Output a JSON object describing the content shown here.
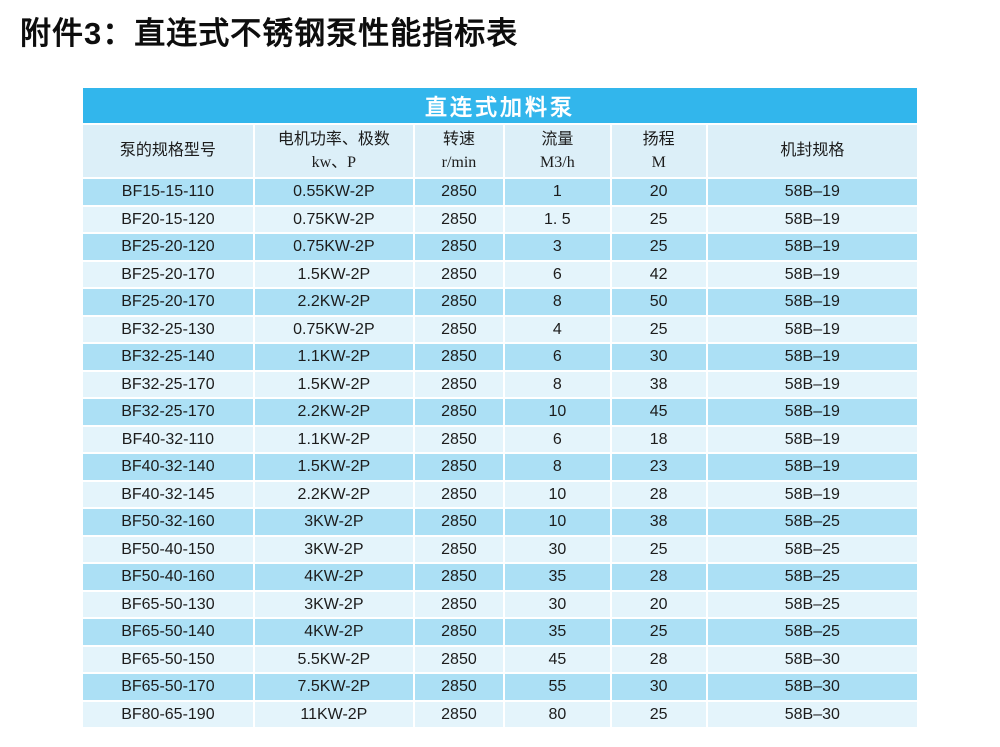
{
  "page": {
    "title": "附件3：直连式不锈钢泵性能指标表"
  },
  "table": {
    "title": "直连式加料泵",
    "columns": [
      {
        "lines": [
          "泵的规格型号"
        ]
      },
      {
        "lines": [
          "电机功率、极数",
          "kw、P"
        ]
      },
      {
        "lines": [
          "转速",
          "r/min"
        ]
      },
      {
        "lines": [
          "流量",
          "M3/h"
        ]
      },
      {
        "lines": [
          "扬程",
          "M"
        ]
      },
      {
        "lines": [
          "机封规格"
        ]
      }
    ],
    "rows": [
      [
        "BF15-15-110",
        "0.55KW-2P",
        "2850",
        "1",
        "20",
        "58B–19"
      ],
      [
        "BF20-15-120",
        "0.75KW-2P",
        "2850",
        "1. 5",
        "25",
        "58B–19"
      ],
      [
        "BF25-20-120",
        "0.75KW-2P",
        "2850",
        "3",
        "25",
        "58B–19"
      ],
      [
        "BF25-20-170",
        "1.5KW-2P",
        "2850",
        "6",
        "42",
        "58B–19"
      ],
      [
        "BF25-20-170",
        "2.2KW-2P",
        "2850",
        "8",
        "50",
        "58B–19"
      ],
      [
        "BF32-25-130",
        "0.75KW-2P",
        "2850",
        "4",
        "25",
        "58B–19"
      ],
      [
        "BF32-25-140",
        "1.1KW-2P",
        "2850",
        "6",
        "30",
        "58B–19"
      ],
      [
        "BF32-25-170",
        "1.5KW-2P",
        "2850",
        "8",
        "38",
        "58B–19"
      ],
      [
        "BF32-25-170",
        "2.2KW-2P",
        "2850",
        "10",
        "45",
        "58B–19"
      ],
      [
        "BF40-32-110",
        "1.1KW-2P",
        "2850",
        "6",
        "18",
        "58B–19"
      ],
      [
        "BF40-32-140",
        "1.5KW-2P",
        "2850",
        "8",
        "23",
        "58B–19"
      ],
      [
        "BF40-32-145",
        "2.2KW-2P",
        "2850",
        "10",
        "28",
        "58B–19"
      ],
      [
        "BF50-32-160",
        "3KW-2P",
        "2850",
        "10",
        "38",
        "58B–25"
      ],
      [
        "BF50-40-150",
        "3KW-2P",
        "2850",
        "30",
        "25",
        "58B–25"
      ],
      [
        "BF50-40-160",
        "4KW-2P",
        "2850",
        "35",
        "28",
        "58B–25"
      ],
      [
        "BF65-50-130",
        "3KW-2P",
        "2850",
        "30",
        "20",
        "58B–25"
      ],
      [
        "BF65-50-140",
        "4KW-2P",
        "2850",
        "35",
        "25",
        "58B–25"
      ],
      [
        "BF65-50-150",
        "5.5KW-2P",
        "2850",
        "45",
        "28",
        "58B–30"
      ],
      [
        "BF65-50-170",
        "7.5KW-2P",
        "2850",
        "55",
        "30",
        "58B–30"
      ],
      [
        "BF80-65-190",
        "11KW-2P",
        "2850",
        "80",
        "25",
        "58B–30"
      ]
    ]
  },
  "colors": {
    "title_bar_bg": "#32B6EC",
    "title_bar_text": "#FFFFFF",
    "header_row_bg": "#DCEFF8",
    "row_odd_bg": "#ACE0F5",
    "row_even_bg": "#E4F4FB",
    "text": "#1C1C1C",
    "page_bg": "#FFFFFF"
  }
}
